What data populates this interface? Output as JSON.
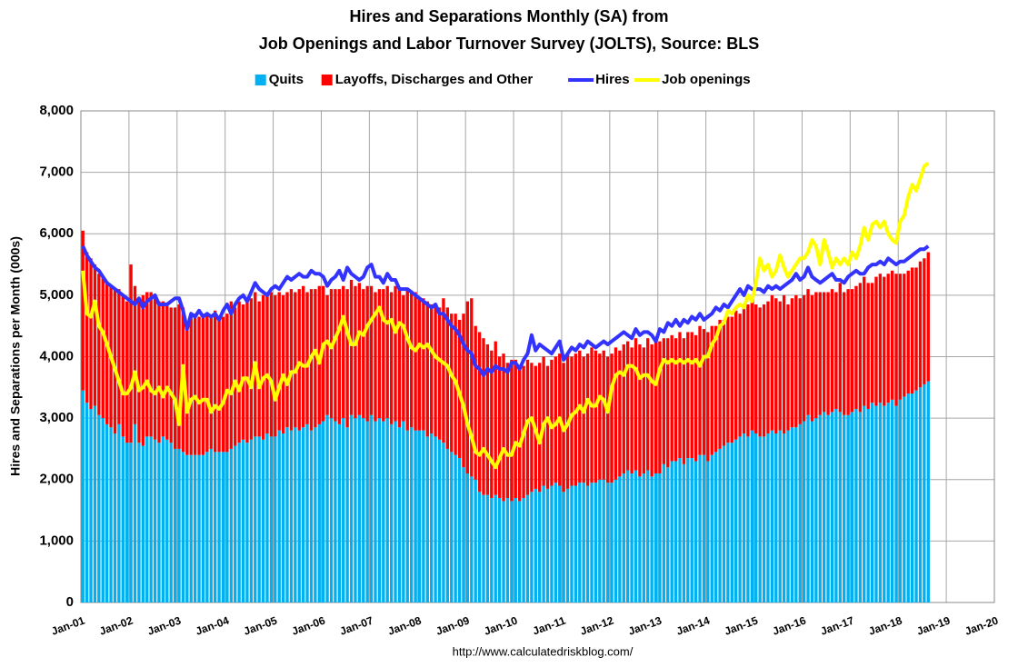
{
  "chart_data": {
    "type": "bar",
    "stacked": true,
    "title": "Hires and Separations Monthly (SA) from",
    "subtitle": "Job Openings and Labor Turnover Survey (JOLTS), Source: BLS",
    "y_label": "Hires and Separations per Month (000s)",
    "source": "http://www.calculatedriskblog.com/",
    "grid": true,
    "legend": "top",
    "xlim": [
      0,
      228
    ],
    "xticks": [
      {
        "value": 0,
        "label": "Jan-01"
      },
      {
        "value": 12,
        "label": "Jan-02"
      },
      {
        "value": 24,
        "label": "Jan-03"
      },
      {
        "value": 36,
        "label": "Jan-04"
      },
      {
        "value": 48,
        "label": "Jan-05"
      },
      {
        "value": 60,
        "label": "Jan-06"
      },
      {
        "value": 72,
        "label": "Jan-07"
      },
      {
        "value": 84,
        "label": "Jan-08"
      },
      {
        "value": 96,
        "label": "Jan-09"
      },
      {
        "value": 108,
        "label": "Jan-10"
      },
      {
        "value": 120,
        "label": "Jan-11"
      },
      {
        "value": 132,
        "label": "Jan-12"
      },
      {
        "value": 144,
        "label": "Jan-13"
      },
      {
        "value": 156,
        "label": "Jan-14"
      },
      {
        "value": 168,
        "label": "Jan-15"
      },
      {
        "value": 180,
        "label": "Jan-16"
      },
      {
        "value": 192,
        "label": "Jan-17"
      },
      {
        "value": 204,
        "label": "Jan-18"
      },
      {
        "value": 216,
        "label": "Jan-19"
      },
      {
        "value": 228,
        "label": "Jan-20"
      }
    ],
    "ylim": [
      0,
      8000
    ],
    "yticks": [
      0,
      {
        "value": 1000,
        "label": "1,000"
      },
      {
        "value": 2000,
        "label": "2,000"
      },
      {
        "value": 3000,
        "label": "3,000"
      },
      {
        "value": 4000,
        "label": "4,000"
      },
      {
        "value": 5000,
        "label": "5,000"
      },
      {
        "value": 6000,
        "label": "6,000"
      },
      {
        "value": 7000,
        "label": "7,000"
      },
      {
        "value": 8000,
        "label": "8,000"
      }
    ],
    "series": [
      {
        "name": "Quits",
        "type": "bar",
        "color": "#00b0f0",
        "values": [
          3450,
          3250,
          3150,
          3200,
          3050,
          3000,
          2900,
          2850,
          2750,
          2900,
          2700,
          2600,
          2600,
          2900,
          2600,
          2550,
          2700,
          2700,
          2650,
          2600,
          2700,
          2650,
          2600,
          2500,
          2500,
          2450,
          2400,
          2400,
          2400,
          2400,
          2400,
          2450,
          2500,
          2450,
          2450,
          2450,
          2450,
          2500,
          2550,
          2600,
          2650,
          2600,
          2650,
          2700,
          2700,
          2650,
          2750,
          2700,
          2700,
          2800,
          2750,
          2850,
          2800,
          2850,
          2800,
          2850,
          2900,
          2800,
          2850,
          2900,
          2950,
          3050,
          3000,
          2950,
          2900,
          3000,
          2850,
          3050,
          3000,
          3050,
          3000,
          2950,
          3050,
          2950,
          3000,
          2950,
          3000,
          2900,
          2950,
          2850,
          2950,
          2800,
          2850,
          2800,
          2800,
          2800,
          2700,
          2750,
          2700,
          2650,
          2600,
          2500,
          2450,
          2400,
          2350,
          2200,
          2100,
          2050,
          2000,
          1800,
          1750,
          1750,
          1700,
          1750,
          1700,
          1650,
          1700,
          1650,
          1700,
          1650,
          1700,
          1750,
          1800,
          1850,
          1800,
          1900,
          1850,
          1900,
          1950,
          1900,
          1800,
          1850,
          1900,
          1900,
          1950,
          1950,
          1900,
          1950,
          1950,
          2000,
          2000,
          1950,
          1950,
          2000,
          2050,
          2100,
          2150,
          2100,
          2150,
          2050,
          2100,
          2150,
          2050,
          2100,
          2100,
          2250,
          2200,
          2300,
          2300,
          2350,
          2250,
          2350,
          2350,
          2300,
          2400,
          2400,
          2300,
          2400,
          2450,
          2500,
          2550,
          2600,
          2600,
          2650,
          2700,
          2750,
          2700,
          2800,
          2750,
          2700,
          2700,
          2750,
          2800,
          2750,
          2800,
          2750,
          2800,
          2850,
          2850,
          2900,
          2950,
          3050,
          2950,
          3000,
          3050,
          3100,
          3050,
          3100,
          3150,
          3100,
          3050,
          3050,
          3100,
          3150,
          3100,
          3200,
          3150,
          3250,
          3200,
          3250,
          3200,
          3250,
          3300,
          3200,
          3300,
          3350,
          3400,
          3400,
          3450,
          3500,
          3550,
          3600
        ]
      },
      {
        "name": "Layoffs, Discharges and Other",
        "type": "bar",
        "color": "#ff0000",
        "values": [
          2600,
          2450,
          2450,
          2300,
          2300,
          2300,
          2300,
          2300,
          2350,
          2200,
          2300,
          2300,
          2900,
          2250,
          2350,
          2450,
          2350,
          2350,
          2300,
          2300,
          2200,
          2200,
          2200,
          2300,
          2350,
          2350,
          2100,
          2300,
          2300,
          2250,
          2300,
          2250,
          2150,
          2300,
          2150,
          2200,
          2250,
          2400,
          2250,
          2300,
          2200,
          2300,
          2300,
          2350,
          2200,
          2350,
          2300,
          2350,
          2300,
          2250,
          2250,
          2200,
          2300,
          2200,
          2300,
          2300,
          2150,
          2300,
          2250,
          2250,
          2200,
          1950,
          2100,
          2150,
          2200,
          2150,
          2250,
          2200,
          2150,
          2150,
          2100,
          2200,
          2100,
          2100,
          2100,
          2150,
          2150,
          2150,
          2200,
          2250,
          2050,
          2300,
          2200,
          2250,
          2150,
          2150,
          2200,
          2100,
          2150,
          2150,
          2350,
          2300,
          2250,
          2300,
          2250,
          2500,
          2800,
          2900,
          2500,
          2600,
          2550,
          2450,
          2400,
          2500,
          2300,
          2400,
          2200,
          2300,
          2250,
          2150,
          2150,
          2200,
          2100,
          2000,
          2100,
          2100,
          2000,
          2050,
          2050,
          2150,
          2100,
          2200,
          2100,
          2150,
          2150,
          2050,
          2150,
          2200,
          2150,
          2050,
          2100,
          2050,
          2100,
          2150,
          2050,
          2100,
          2100,
          2050,
          2150,
          2150,
          2050,
          2150,
          2150,
          2150,
          2150,
          2050,
          2100,
          2050,
          2000,
          2050,
          2050,
          2050,
          2050,
          2050,
          2100,
          2050,
          2100,
          2100,
          2050,
          2100,
          2050,
          2050,
          2050,
          2100,
          2000,
          2050,
          2150,
          2100,
          2100,
          2100,
          2150,
          2150,
          2200,
          2200,
          2100,
          2250,
          2050,
          2100,
          2150,
          2050,
          2050,
          2050,
          2050,
          2050,
          2000,
          1950,
          2000,
          2000,
          1900,
          2100,
          2000,
          2050,
          2000,
          2000,
          2100,
          2100,
          2050,
          1950,
          2100,
          2100,
          2100,
          2100,
          2100,
          2150,
          2050,
          2000,
          2000,
          2050,
          2000,
          2050,
          2050,
          2100
        ]
      },
      {
        "name": "Hires",
        "type": "line",
        "color": "#3333ff",
        "values": [
          5800,
          5650,
          5550,
          5450,
          5400,
          5300,
          5200,
          5150,
          5100,
          5050,
          5000,
          4950,
          4900,
          4850,
          4950,
          4800,
          4900,
          4950,
          5000,
          4850,
          4850,
          4850,
          4900,
          4950,
          4950,
          4750,
          4450,
          4700,
          4650,
          4750,
          4650,
          4700,
          4650,
          4700,
          4600,
          4750,
          4850,
          4700,
          4850,
          4950,
          5000,
          4900,
          5050,
          5200,
          5100,
          5050,
          5000,
          5100,
          5150,
          5100,
          5200,
          5300,
          5250,
          5300,
          5350,
          5300,
          5300,
          5400,
          5350,
          5350,
          5300,
          5150,
          5250,
          5300,
          5400,
          5250,
          5450,
          5350,
          5300,
          5250,
          5300,
          5450,
          5500,
          5300,
          5300,
          5200,
          5350,
          5250,
          5250,
          5100,
          5100,
          5100,
          5050,
          5000,
          4950,
          4900,
          4850,
          4800,
          4850,
          4700,
          4700,
          4600,
          4500,
          4450,
          4350,
          4200,
          4100,
          4050,
          3850,
          3800,
          3700,
          3800,
          3750,
          3850,
          3800,
          3800,
          3750,
          3900,
          3900,
          3800,
          3950,
          4050,
          4350,
          4100,
          4200,
          4150,
          4100,
          4050,
          4150,
          4250,
          3950,
          4050,
          4150,
          4100,
          4200,
          4150,
          4250,
          4200,
          4150,
          4200,
          4250,
          4200,
          4250,
          4300,
          4350,
          4400,
          4350,
          4300,
          4450,
          4350,
          4400,
          4400,
          4350,
          4250,
          4450,
          4400,
          4550,
          4500,
          4600,
          4500,
          4600,
          4550,
          4650,
          4600,
          4700,
          4600,
          4650,
          4700,
          4800,
          4750,
          4850,
          4800,
          4900,
          5000,
          5100,
          5000,
          5150,
          5100,
          5100,
          5100,
          5050,
          5150,
          5100,
          5150,
          5100,
          5150,
          5200,
          5250,
          5350,
          5250,
          5300,
          5450,
          5300,
          5250,
          5200,
          5250,
          5300,
          5350,
          5250,
          5250,
          5200,
          5300,
          5350,
          5400,
          5350,
          5350,
          5450,
          5500,
          5500,
          5550,
          5500,
          5600,
          5550,
          5500,
          5550,
          5550,
          5600,
          5650,
          5700,
          5750,
          5750,
          5800
        ]
      },
      {
        "name": "Job openings",
        "type": "line",
        "color": "#ffff00",
        "values": [
          5400,
          4700,
          4650,
          4900,
          4500,
          4400,
          4200,
          4000,
          3800,
          3600,
          3400,
          3400,
          3500,
          3750,
          3450,
          3500,
          3600,
          3450,
          3400,
          3500,
          3350,
          3500,
          3400,
          3300,
          2900,
          3850,
          3100,
          3300,
          3350,
          3250,
          3300,
          3300,
          3100,
          3200,
          3150,
          3250,
          3450,
          3400,
          3600,
          3450,
          3650,
          3650,
          3500,
          3900,
          3500,
          3650,
          3700,
          3600,
          3300,
          3500,
          3700,
          3550,
          3750,
          3750,
          3900,
          3850,
          3850,
          4000,
          4100,
          3900,
          4200,
          4250,
          4150,
          4300,
          4450,
          4650,
          4400,
          4200,
          4200,
          4400,
          4350,
          4500,
          4600,
          4700,
          4800,
          4600,
          4550,
          4600,
          4400,
          4550,
          4500,
          4300,
          4150,
          4100,
          4200,
          4150,
          4200,
          4100,
          4000,
          3950,
          3900,
          3850,
          3700,
          3600,
          3400,
          3200,
          2900,
          2700,
          2450,
          2400,
          2500,
          2400,
          2300,
          2200,
          2350,
          2500,
          2400,
          2400,
          2600,
          2550,
          2750,
          2950,
          3000,
          2800,
          2600,
          2900,
          3000,
          2850,
          2900,
          3000,
          2800,
          2900,
          3050,
          3100,
          3200,
          3100,
          3300,
          3200,
          3200,
          3350,
          3300,
          3100,
          3500,
          3700,
          3750,
          3700,
          3850,
          3850,
          3800,
          3650,
          3700,
          3700,
          3600,
          3550,
          3800,
          3950,
          3900,
          3950,
          3900,
          3950,
          3900,
          3950,
          3900,
          3950,
          3850,
          4000,
          4000,
          4200,
          4300,
          4500,
          4550,
          4750,
          4700,
          4800,
          4850,
          4800,
          5000,
          4900,
          5200,
          5600,
          5400,
          5500,
          5300,
          5400,
          5650,
          5450,
          5300,
          5400,
          5500,
          5600,
          5600,
          5700,
          5900,
          5800,
          5500,
          5900,
          5700,
          5450,
          5600,
          5500,
          5600,
          5500,
          5700,
          5600,
          5800,
          6100,
          5900,
          6150,
          6200,
          6100,
          6200,
          6000,
          5900,
          5850,
          6200,
          6300,
          6600,
          6800,
          6700,
          6900,
          7100,
          7150
        ]
      }
    ]
  }
}
